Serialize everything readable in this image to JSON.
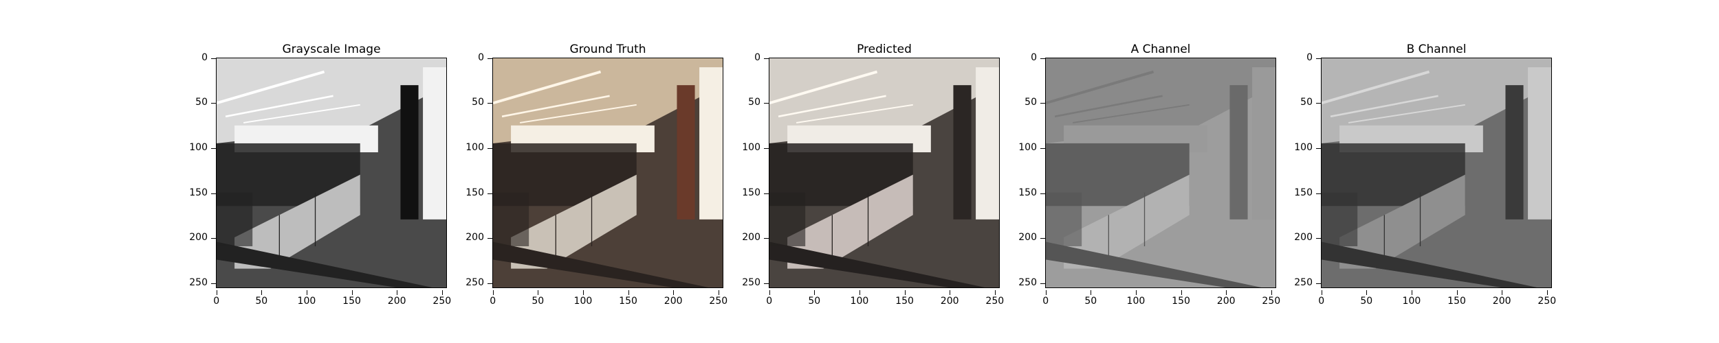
{
  "panels": [
    {
      "id": "grayscale",
      "title": "Grayscale Image",
      "tone": "gray"
    },
    {
      "id": "ground-truth",
      "title": "Ground Truth",
      "tone": "warm"
    },
    {
      "id": "predicted",
      "title": "Predicted",
      "tone": "muted"
    },
    {
      "id": "a-channel",
      "title": "A Channel",
      "tone": "flat"
    },
    {
      "id": "b-channel",
      "title": "B Channel",
      "tone": "flat2"
    }
  ],
  "x_ticks": [
    "0",
    "50",
    "100",
    "150",
    "200",
    "250"
  ],
  "y_ticks": [
    "0",
    "50",
    "100",
    "150",
    "200",
    "250"
  ],
  "colors": {
    "frame": "#000000",
    "background": "#ffffff"
  }
}
